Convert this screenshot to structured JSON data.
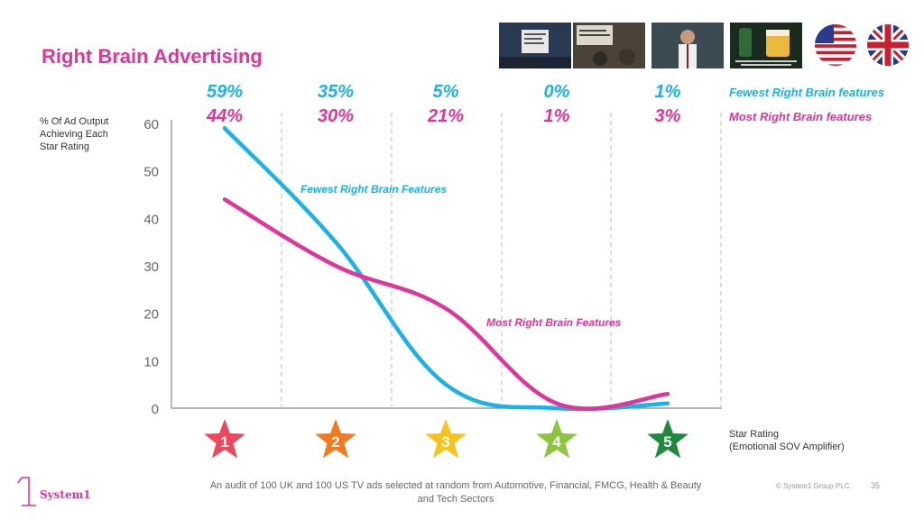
{
  "slide": {
    "title": "Right Brain Advertising",
    "page_number": "35",
    "copyright": "© System1 Group PLC",
    "logo_text": "System1",
    "footnote": "An audit of 100 UK and 100 US TV ads selected at random  from Automotive,  Financial, FMCG, Health & Beauty and Tech Sectors"
  },
  "header_images": [
    {
      "name": "ad-thumbnail-1"
    },
    {
      "name": "ad-thumbnail-2"
    },
    {
      "name": "ad-thumbnail-3"
    },
    {
      "name": "ad-thumbnail-4"
    }
  ],
  "flags": [
    "us-flag-icon",
    "uk-flag-icon"
  ],
  "colors": {
    "fewest": "#1ab2e8",
    "most": "#e0359a",
    "title": "#e0359a",
    "star_colors": [
      "#f0455a",
      "#f47a20",
      "#f8c21c",
      "#8cc63f",
      "#1f8a3b"
    ]
  },
  "chart_data": {
    "type": "line",
    "categories": [
      "1",
      "2",
      "3",
      "4",
      "5"
    ],
    "ylim": [
      0,
      60
    ],
    "yticks": [
      "0",
      "10",
      "20",
      "30",
      "40",
      "50",
      "60"
    ],
    "ylabel": "% Of Ad Output Achieving Each Star Rating",
    "xlabel": "Star Rating (Emotional SOV Amplifier)",
    "xlabel_line1": "Star Rating",
    "xlabel_line2": "(Emotional SOV Amplifier)",
    "ylabel_line1": "% Of Ad Output",
    "ylabel_line2": "Achieving Each",
    "ylabel_line3": "Star Rating",
    "series": [
      {
        "name": "Fewest Right Brain features",
        "curve_label": "Fewest Right Brain Features",
        "values": [
          59,
          35,
          5,
          0,
          1
        ],
        "labels": [
          "59%",
          "35%",
          "5%",
          "0%",
          "1%"
        ]
      },
      {
        "name": "Most Right Brain features",
        "curve_label": "Most Right Brain Features",
        "values": [
          44,
          30,
          21,
          1,
          3
        ],
        "labels": [
          "44%",
          "30%",
          "21%",
          "1%",
          "3%"
        ]
      }
    ],
    "legend_placement": "top-right",
    "grid": "vertical dashed separators"
  }
}
